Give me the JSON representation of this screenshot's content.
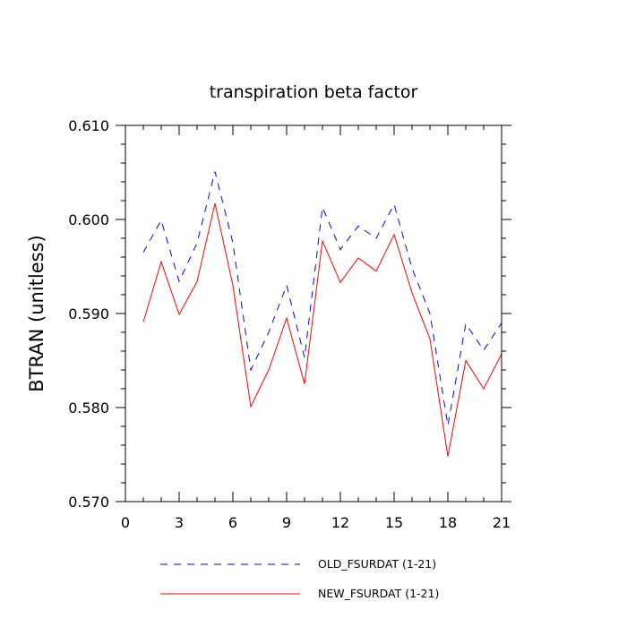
{
  "chart_data": {
    "type": "line",
    "title": "transpiration beta factor",
    "xlabel": "",
    "ylabel": "BTRAN  (unitless)",
    "xlim": [
      0,
      21
    ],
    "ylim": [
      0.57,
      0.61
    ],
    "x_ticks": [
      "0",
      "3",
      "6",
      "9",
      "12",
      "15",
      "18",
      "21"
    ],
    "y_ticks": [
      "0.570",
      "0.580",
      "0.590",
      "0.600",
      "0.610"
    ],
    "grid": false,
    "legend_position": "bottom-center",
    "x": [
      1,
      2,
      3,
      4,
      5,
      6,
      7,
      8,
      9,
      10,
      11,
      12,
      13,
      14,
      15,
      16,
      17,
      18,
      19,
      20,
      21
    ],
    "series": [
      {
        "name": "OLD_FSURDAT (1-21)",
        "color": "#0000ff",
        "style": "dashed",
        "values": [
          0.5965,
          0.5999,
          0.5934,
          0.5975,
          0.6051,
          0.5975,
          0.584,
          0.588,
          0.593,
          0.5853,
          0.6013,
          0.5968,
          0.5993,
          0.598,
          0.6016,
          0.5948,
          0.59,
          0.5781,
          0.5889,
          0.5861,
          0.589
        ]
      },
      {
        "name": "NEW_FSURDAT (1-21)",
        "color": "#ff0000",
        "style": "solid",
        "values": [
          0.5891,
          0.5955,
          0.5899,
          0.5934,
          0.6017,
          0.593,
          0.5801,
          0.584,
          0.5895,
          0.5825,
          0.5977,
          0.5933,
          0.5959,
          0.5945,
          0.5984,
          0.5922,
          0.5873,
          0.5748,
          0.585,
          0.582,
          0.5857
        ]
      }
    ]
  }
}
